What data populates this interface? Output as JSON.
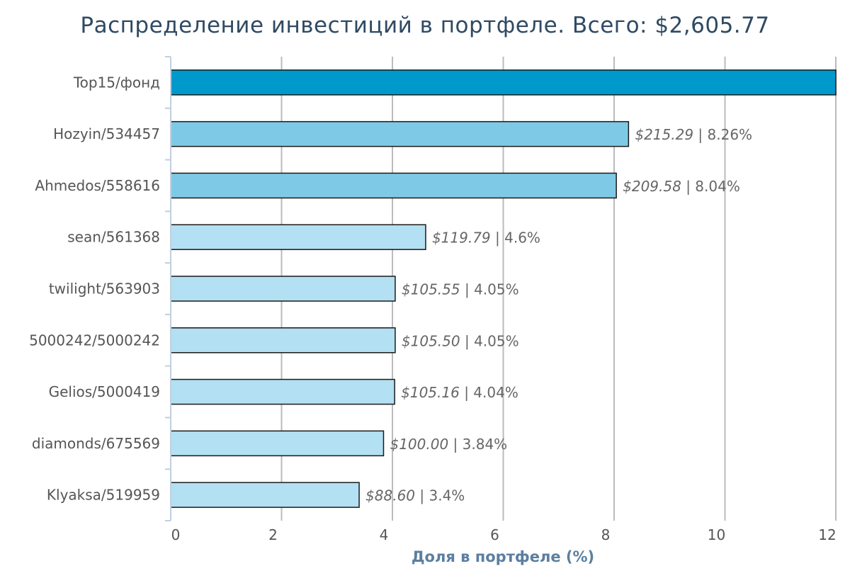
{
  "chart_data": {
    "type": "bar",
    "orientation": "horizontal",
    "title": "Распределение инвестиций в портфеле. Всего: $2,605.77",
    "xlabel": "Доля в портфеле (%)",
    "ylabel": "",
    "xlim": [
      0,
      12
    ],
    "xticks": [
      0,
      2,
      4,
      6,
      8,
      10,
      12
    ],
    "grid": true,
    "categories": [
      "Top15/фонд",
      "Hozyin/534457",
      "Ahmedos/558616",
      "sean/561368",
      "twilight/563903",
      "5000242/5000242",
      "Gelios/5000419",
      "diamonds/675569",
      "Klyaksa/519959"
    ],
    "values": [
      12.0,
      8.26,
      8.04,
      4.6,
      4.05,
      4.05,
      4.04,
      3.84,
      3.4
    ],
    "amount_labels": [
      "",
      "$215.29",
      "$209.58",
      "$119.79",
      "$105.55",
      "$105.50",
      "$105.16",
      "$100.00",
      "$88.60"
    ],
    "percent_labels": [
      "",
      "8.26%",
      "8.04%",
      "4.6%",
      "4.05%",
      "4.05%",
      "4.04%",
      "3.84%",
      "3.4%"
    ],
    "colors": [
      "#0099cc",
      "#7ecae6",
      "#7ecae6",
      "#b3e0f2",
      "#b3e0f2",
      "#b3e0f2",
      "#b3e0f2",
      "#b3e0f2",
      "#b3e0f2"
    ],
    "bar_edge_color": "#1a1a1a",
    "grid_color": "#bbbbbb",
    "axis_color": "#c0d0e0"
  }
}
